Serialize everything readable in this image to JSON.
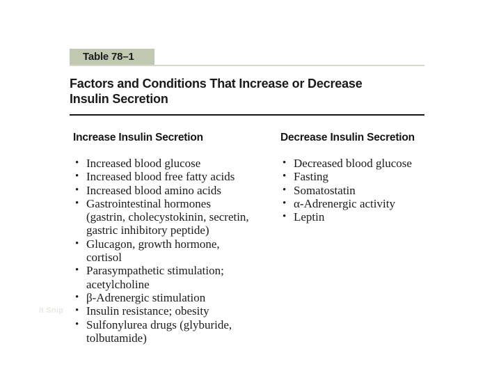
{
  "table": {
    "label": "Table 78–1",
    "label_bg": "#c1c8b1",
    "divider_light": "#d7d7cb",
    "divider_dark": "#161616",
    "title_lines": [
      "Factors and Conditions That Increase or Decrease",
      "Insulin Secretion"
    ],
    "columns": [
      {
        "id": "increase",
        "header": "Increase Insulin Secretion",
        "items": [
          {
            "lines": [
              "Increased blood glucose"
            ]
          },
          {
            "lines": [
              "Increased blood free fatty acids"
            ]
          },
          {
            "lines": [
              "Increased blood amino acids"
            ]
          },
          {
            "lines": [
              "Gastrointestinal hormones",
              "(gastrin, cholecystokinin, secretin,",
              "gastric inhibitory peptide)"
            ]
          },
          {
            "lines": [
              "Glucagon, growth hormone,",
              "cortisol"
            ]
          },
          {
            "lines": [
              "Parasympathetic stimulation;",
              "acetylcholine"
            ]
          },
          {
            "lines": [
              "β-Adrenergic stimulation"
            ]
          },
          {
            "lines": [
              "Insulin resistance; obesity"
            ]
          },
          {
            "lines": [
              "Sulfonylurea drugs (glyburide,",
              "tolbutamide)"
            ]
          }
        ]
      },
      {
        "id": "decrease",
        "header": "Decrease Insulin Secretion",
        "items": [
          {
            "lines": [
              "Decreased blood glucose"
            ]
          },
          {
            "lines": [
              "Fasting"
            ]
          },
          {
            "lines": [
              "Somatostatin"
            ]
          },
          {
            "lines": [
              "α-Adrenergic activity"
            ]
          },
          {
            "lines": [
              "Leptin"
            ]
          }
        ]
      }
    ]
  },
  "watermark": {
    "text": "it Snip"
  }
}
